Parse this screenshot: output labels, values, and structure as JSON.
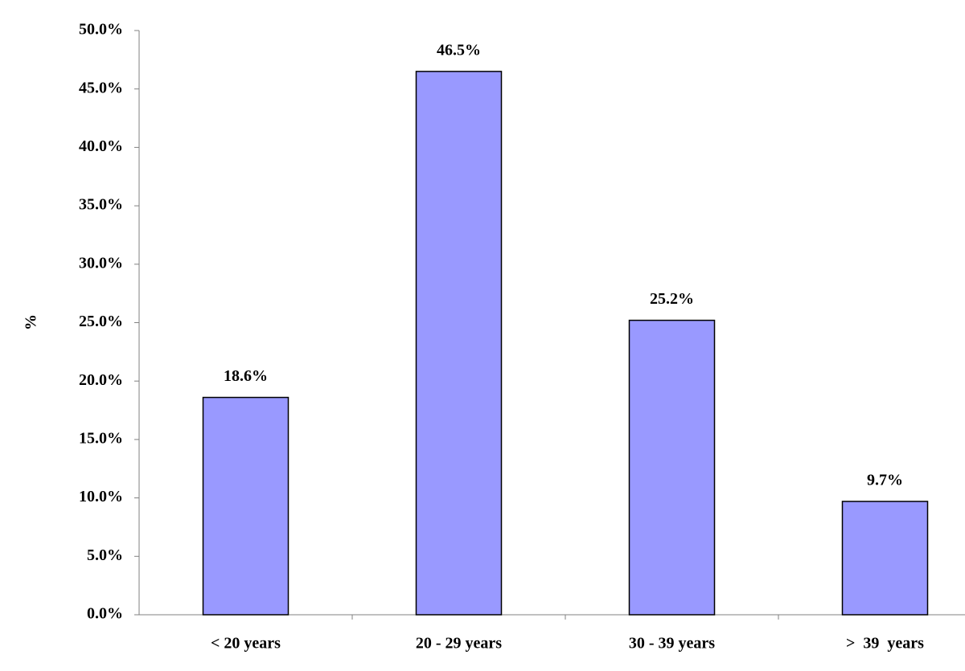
{
  "chart_data": {
    "type": "bar",
    "y_label": "%",
    "categories": [
      "< 20 years",
      "20 - 29 years",
      "30 - 39 years",
      ">  39  years"
    ],
    "values": [
      18.6,
      46.5,
      25.2,
      9.7
    ],
    "value_labels": [
      "18.6%",
      "46.5%",
      "25.2%",
      "9.7%"
    ],
    "color": "#9999ff",
    "ylim": [
      0,
      50
    ],
    "yticks": [
      {
        "value": 0,
        "label": "0.0%"
      },
      {
        "value": 5,
        "label": "5.0%"
      },
      {
        "value": 10,
        "label": "10.0%"
      },
      {
        "value": 15,
        "label": "15.0%"
      },
      {
        "value": 20,
        "label": "20.0%"
      },
      {
        "value": 25,
        "label": "25.0%"
      },
      {
        "value": 30,
        "label": "30.0%"
      },
      {
        "value": 35,
        "label": "35.0%"
      },
      {
        "value": 40,
        "label": "40.0%"
      },
      {
        "value": 45,
        "label": "45.0%"
      },
      {
        "value": 50,
        "label": "50.0%"
      }
    ],
    "grid": false
  }
}
